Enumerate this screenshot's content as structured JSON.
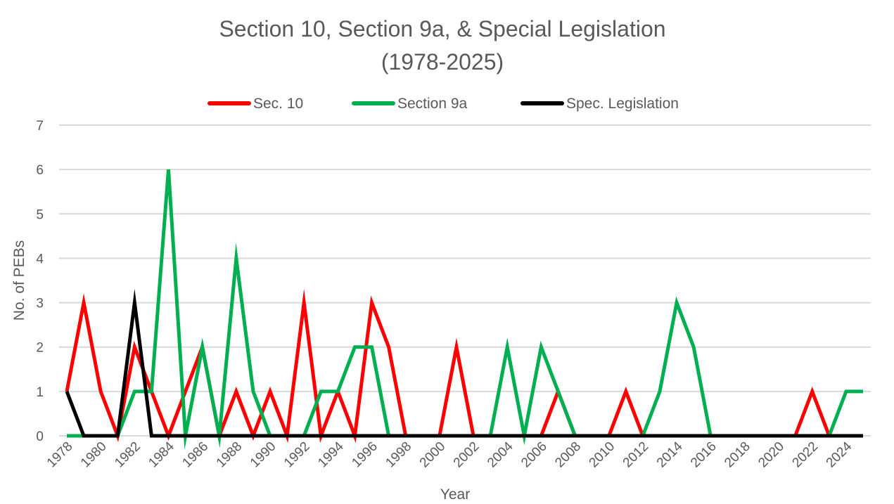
{
  "chart_data": {
    "type": "line",
    "title_line1": "Section 10, Section 9a, & Special Legislation",
    "title_line2": "(1978-2025)",
    "xlabel": "Year",
    "ylabel": "No. of PEBs",
    "ylim": [
      0,
      7
    ],
    "yticks": [
      "0",
      "1",
      "2",
      "3",
      "4",
      "5",
      "6",
      "7"
    ],
    "x": [
      1978,
      1979,
      1980,
      1981,
      1982,
      1983,
      1984,
      1985,
      1986,
      1987,
      1988,
      1989,
      1990,
      1991,
      1992,
      1993,
      1994,
      1995,
      1996,
      1997,
      1998,
      1999,
      2000,
      2001,
      2002,
      2003,
      2004,
      2005,
      2006,
      2007,
      2008,
      2009,
      2010,
      2011,
      2012,
      2013,
      2014,
      2015,
      2016,
      2017,
      2018,
      2019,
      2020,
      2021,
      2022,
      2023,
      2024,
      2025
    ],
    "xtick_labels": [
      "1978",
      "1980",
      "1982",
      "1984",
      "1986",
      "1988",
      "1990",
      "1992",
      "1994",
      "1996",
      "1998",
      "2000",
      "2002",
      "2004",
      "2006",
      "2008",
      "2010",
      "2012",
      "2014",
      "2016",
      "2018",
      "2020",
      "2022",
      "2024"
    ],
    "legend_position": "top",
    "grid": true,
    "series": [
      {
        "name": "Sec. 10",
        "color": "#ff0000",
        "values": [
          1,
          3,
          1,
          0,
          2,
          1,
          0,
          1,
          2,
          0,
          1,
          0,
          1,
          0,
          3,
          0,
          1,
          0,
          3,
          2,
          0,
          0,
          0,
          2,
          0,
          0,
          0,
          0,
          0,
          1,
          0,
          0,
          0,
          1,
          0,
          0,
          0,
          0,
          0,
          0,
          0,
          0,
          0,
          0,
          1,
          0,
          0,
          0
        ]
      },
      {
        "name": "Section 9a",
        "color": "#00b050",
        "values": [
          0,
          0,
          0,
          0,
          1,
          1,
          6,
          0,
          2,
          0,
          4,
          1,
          0,
          0,
          0,
          1,
          1,
          2,
          2,
          0,
          0,
          0,
          0,
          0,
          0,
          0,
          2,
          0,
          2,
          1,
          0,
          0,
          0,
          0,
          0,
          1,
          3,
          2,
          0,
          0,
          0,
          0,
          0,
          0,
          0,
          0,
          1,
          1
        ]
      },
      {
        "name": "Spec. Legislation",
        "color": "#000000",
        "values": [
          1,
          0,
          0,
          0,
          3,
          0,
          0,
          0,
          0,
          0,
          0,
          0,
          0,
          0,
          0,
          0,
          0,
          0,
          0,
          0,
          0,
          0,
          0,
          0,
          0,
          0,
          0,
          0,
          0,
          0,
          0,
          0,
          0,
          0,
          0,
          0,
          0,
          0,
          0,
          0,
          0,
          0,
          0,
          0,
          0,
          0,
          0,
          0
        ]
      }
    ]
  }
}
